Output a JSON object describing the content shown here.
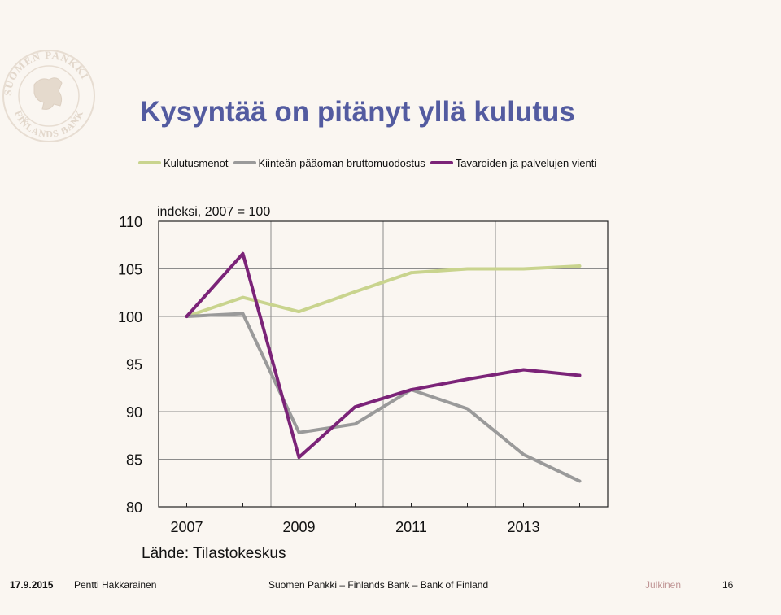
{
  "slide": {
    "title": "Kysyntää on pitänyt yllä kulutus",
    "source": "Lähde: Tilastokeskus"
  },
  "logo": {
    "icon": "suomen-pankki-lion-seal",
    "text": "SUOMEN PANKKI · FINLANDS BANK · EUROSYSTEMET · 18 11"
  },
  "footer": {
    "date": "17.9.2015",
    "author": "Pentti Hakkarainen",
    "organization": "Suomen Pankki – Finlands Bank – Bank of Finland",
    "classification": "Julkinen",
    "page": "16"
  },
  "chart_data": {
    "type": "line",
    "ylabel": "indeksi, 2007 = 100",
    "ylim": [
      80,
      110
    ],
    "yticks": [
      80,
      85,
      90,
      95,
      100,
      105,
      110
    ],
    "x": [
      2007,
      2008,
      2009,
      2010,
      2011,
      2012,
      2013,
      2014
    ],
    "xlim": [
      2006.5,
      2014.5
    ],
    "xtick_labels": [
      "2007",
      "2009",
      "2011",
      "2013"
    ],
    "xtick_label_values": [
      2007,
      2009,
      2011,
      2013
    ],
    "grid": true,
    "legend_position": "top",
    "series": [
      {
        "name": "Kulutusmenot",
        "color": "#c9d48e",
        "values": [
          100.0,
          102.0,
          100.5,
          102.6,
          104.6,
          105.0,
          105.0,
          105.3
        ]
      },
      {
        "name": "Kiinteän pääoman bruttomuodostus",
        "color": "#9a9a9a",
        "values": [
          100.0,
          100.3,
          87.8,
          88.7,
          92.3,
          90.3,
          85.5,
          82.7
        ]
      },
      {
        "name": "Tavaroiden ja palvelujen vienti",
        "color": "#7b2378",
        "values": [
          100.0,
          106.6,
          85.2,
          90.5,
          92.3,
          93.4,
          94.4,
          93.8
        ]
      }
    ]
  }
}
